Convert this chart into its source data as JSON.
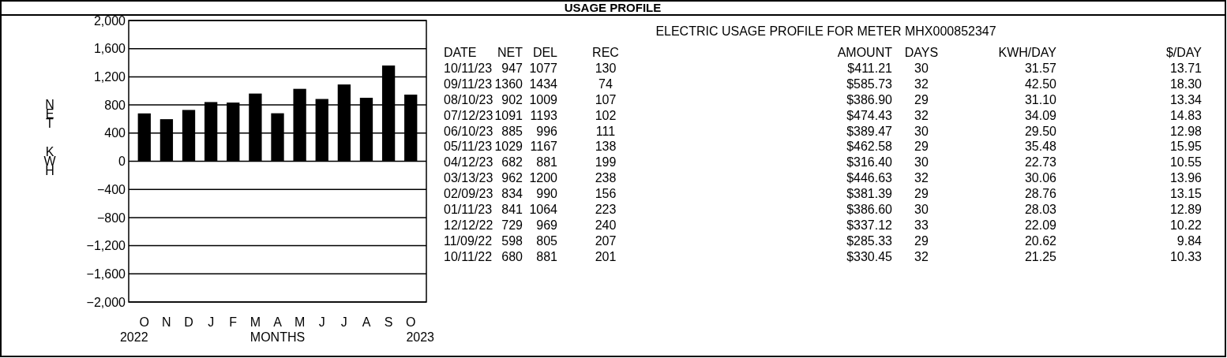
{
  "chart_data": [
    {
      "type": "bar",
      "ylabel": "NET  KWH",
      "xlabel": "MONTHS",
      "categories": [
        "O",
        "N",
        "D",
        "J",
        "F",
        "M",
        "A",
        "M",
        "J",
        "J",
        "A",
        "S",
        "O"
      ],
      "values": [
        680,
        598,
        729,
        841,
        834,
        962,
        682,
        1029,
        885,
        1091,
        902,
        1360,
        947
      ],
      "color": "#000000",
      "ylim": [
        -2000,
        2000
      ],
      "yticks": [
        {
          "value": -2000,
          "label": "−2,000"
        },
        {
          "value": -1600,
          "label": "−1,600"
        },
        {
          "value": -1200,
          "label": "−1,200"
        },
        {
          "value": -800,
          "label": "−800"
        },
        {
          "value": -400,
          "label": "−400"
        },
        0,
        400,
        800,
        {
          "value": 1200,
          "label": "1,200"
        },
        {
          "value": 1600,
          "label": "1,600"
        },
        {
          "value": 2000,
          "label": "2,000"
        }
      ],
      "grid": "y",
      "annotations": [
        "2022",
        "2023"
      ]
    },
    {
      "type": "other",
      "title": "USAGE PROFILE",
      "subtitle": "ELECTRIC USAGE PROFILE FOR METER MHX000852347",
      "annotations": [
        "DATE",
        "NET",
        "DEL",
        "REC",
        "AMOUNT",
        "DAYS",
        "KWH/DAY",
        "$/DAY",
        "10/11/23",
        "947",
        "1077",
        "130",
        "$411.21",
        "30",
        "31.57",
        "13.71",
        "09/11/23",
        "1360",
        "1434",
        "74",
        "$585.73",
        "32",
        "42.50",
        "18.30",
        "08/10/23",
        "902",
        "1009",
        "107",
        "$386.90",
        "29",
        "31.10",
        "13.34",
        "07/12/23",
        "1091",
        "1193",
        "102",
        "$474.43",
        "32",
        "34.09",
        "14.83",
        "06/10/23",
        "885",
        "996",
        "111",
        "$389.47",
        "30",
        "29.50",
        "12.98",
        "05/11/23",
        "1029",
        "1167",
        "138",
        "$462.58",
        "29",
        "35.48",
        "15.95",
        "04/12/23",
        "682",
        "881",
        "199",
        "$316.40",
        "30",
        "22.73",
        "10.55",
        "03/13/23",
        "962",
        "1200",
        "238",
        "$446.63",
        "32",
        "30.06",
        "13.96",
        "02/09/23",
        "834",
        "990",
        "156",
        "$381.39",
        "29",
        "28.76",
        "13.15",
        "01/11/23",
        "841",
        "1064",
        "223",
        "$386.60",
        "30",
        "28.03",
        "12.89",
        "12/12/22",
        "729",
        "969",
        "240",
        "$337.12",
        "33",
        "22.09",
        "10.22",
        "11/09/22",
        "598",
        "805",
        "207",
        "$285.33",
        "29",
        "20.62",
        "9.84",
        "10/11/22",
        "680",
        "881",
        "201",
        "$330.45",
        "32",
        "21.25",
        "10.33"
      ]
    }
  ]
}
